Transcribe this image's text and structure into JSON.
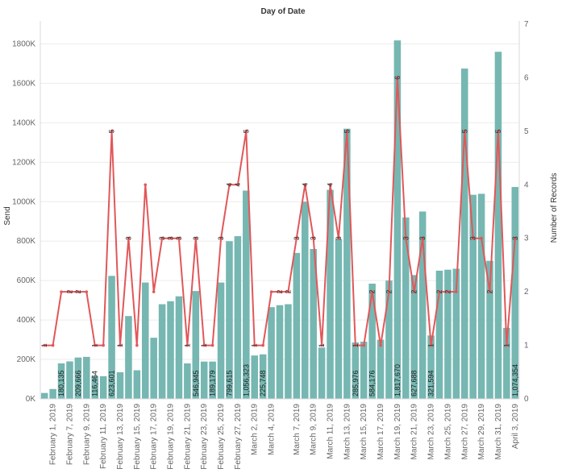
{
  "chart_data": {
    "type": "bar",
    "title": "Day of Date",
    "ylabel": "Send",
    "y2label": "Number of Records",
    "ylim": [
      0,
      1900000
    ],
    "y2lim": [
      0,
      7
    ],
    "yticks": [
      "0K",
      "200K",
      "400K",
      "600K",
      "800K",
      "1000K",
      "1200K",
      "1400K",
      "1600K",
      "1800K"
    ],
    "y2ticks": [
      "0",
      "1",
      "2",
      "3",
      "4",
      "5",
      "6",
      "7"
    ],
    "xticks": [
      "February 1, 2019",
      "February 7, 2019",
      "February 9, 2019",
      "February 11, 2019",
      "February 13, 2019",
      "February 15, 2019",
      "February 17, 2019",
      "February 19, 2019",
      "February 21, 2019",
      "February 23, 2019",
      "February 25, 2019",
      "February 27, 2019",
      "March 2, 2019",
      "March 4, 2019",
      "March 7, 2019",
      "March 9, 2019",
      "March 11, 2019",
      "March 13, 2019",
      "March 15, 2019",
      "March 17, 2019",
      "March 19, 2019",
      "March 21, 2019",
      "March 23, 2019",
      "March 25, 2019",
      "March 27, 2019",
      "March 29, 2019",
      "March 31, 2019",
      "April 3, 2019"
    ],
    "grid": true,
    "legend": "none",
    "colors": {
      "bars": "#76b7b2",
      "line": "#e15759"
    },
    "series": [
      {
        "name": "Send",
        "type": "bar",
        "values": [
          30000,
          50000,
          180135,
          190000,
          209666,
          213000,
          116464,
          115000,
          623601,
          135000,
          420000,
          145000,
          590000,
          310000,
          480000,
          495000,
          520000,
          180000,
          546945,
          189179,
          189179,
          590000,
          799615,
          825000,
          1056323,
          220000,
          225748,
          465000,
          475000,
          480000,
          740000,
          1000000,
          760000,
          260000,
          1060000,
          810000,
          1370000,
          285976,
          290000,
          584176,
          300000,
          600000,
          1817670,
          920000,
          627688,
          950000,
          321594,
          650000,
          655000,
          660000,
          1675000,
          1035000,
          1040000,
          700000,
          1760000,
          360000,
          1074354
        ]
      },
      {
        "name": "Number of Records",
        "type": "line",
        "values": [
          1,
          1,
          2,
          2,
          2,
          2,
          1,
          1,
          5,
          1,
          3,
          1,
          4,
          2,
          3,
          3,
          3,
          1,
          3,
          1,
          1,
          3,
          4,
          4,
          5,
          1,
          1,
          2,
          2,
          2,
          3,
          4,
          3,
          1,
          4,
          3,
          5,
          1,
          1,
          2,
          1,
          2,
          6,
          3,
          2,
          3,
          1,
          2,
          2,
          2,
          5,
          3,
          3,
          2,
          5,
          1,
          3
        ]
      }
    ],
    "bar_value_labels": [
      {
        "index": 2,
        "text": "180,135"
      },
      {
        "index": 4,
        "text": "209,666"
      },
      {
        "index": 6,
        "text": "116,464"
      },
      {
        "index": 8,
        "text": "623,601"
      },
      {
        "index": 18,
        "text": "546,945"
      },
      {
        "index": 20,
        "text": "189,179"
      },
      {
        "index": 22,
        "text": "799,615"
      },
      {
        "index": 24,
        "text": "1,056,323"
      },
      {
        "index": 26,
        "text": "225,748"
      },
      {
        "index": 37,
        "text": "285,976"
      },
      {
        "index": 39,
        "text": "584,176"
      },
      {
        "index": 42,
        "text": "1,817,670"
      },
      {
        "index": 44,
        "text": "627,688"
      },
      {
        "index": 46,
        "text": "321,594"
      },
      {
        "index": 56,
        "text": "1,074,354"
      }
    ],
    "count_label_indices": [
      0,
      3,
      4,
      6,
      8,
      9,
      10,
      14,
      15,
      16,
      17,
      18,
      19,
      21,
      22,
      23,
      24,
      25,
      28,
      29,
      30,
      31,
      32,
      33,
      34,
      35,
      36,
      37,
      39,
      41,
      42,
      43,
      44,
      45,
      46,
      47,
      48,
      50,
      51,
      53,
      54,
      55,
      56
    ]
  }
}
